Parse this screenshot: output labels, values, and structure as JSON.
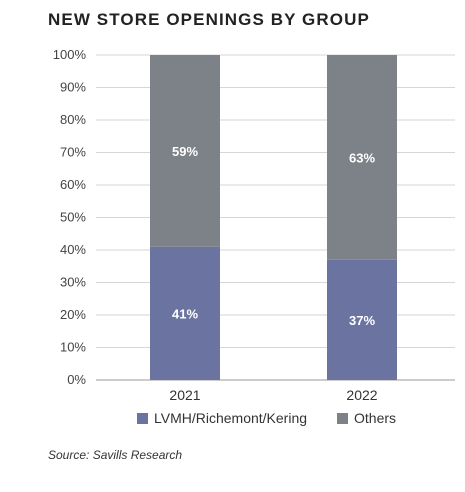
{
  "chart_data": {
    "type": "bar",
    "stacked": true,
    "title": "NEW STORE OPENINGS BY GROUP",
    "categories": [
      "2021",
      "2022"
    ],
    "series": [
      {
        "name": "LVMH/Richemont/Kering",
        "values": [
          41,
          37
        ],
        "labels": [
          "41%",
          "37%"
        ],
        "color": "#6b73a0"
      },
      {
        "name": "Others",
        "values": [
          59,
          63
        ],
        "labels": [
          "59%",
          "63%"
        ],
        "color": "#7c8287"
      }
    ],
    "y_ticks": [
      "0%",
      "10%",
      "20%",
      "30%",
      "40%",
      "50%",
      "60%",
      "70%",
      "80%",
      "90%",
      "100%"
    ],
    "ylim": [
      0,
      100
    ],
    "grid": true,
    "legend_position": "bottom",
    "source": "Source: Savills Research"
  }
}
